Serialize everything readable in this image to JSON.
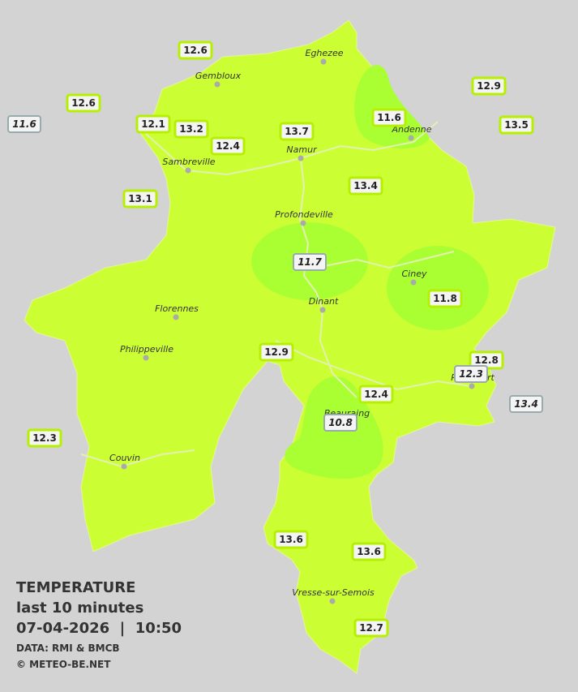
{
  "legend": {
    "title": "TEMPERATURE",
    "subtitle": "last 10 minutes",
    "timestamp": "07-04-2026  |  10:50",
    "source": "DATA: RMI & BMCB",
    "credit": "© METEO-BE.NET"
  },
  "towns": [
    "Eghezee",
    "Gembloux",
    "Andenne",
    "Namur",
    "Sambreville",
    "Profondeville",
    "Ciney",
    "Dinant",
    "Florennes",
    "Philippeville",
    "Rochefort",
    "Beauraing",
    "Couvin",
    "Vresse-sur-Semois"
  ],
  "stations": [
    12.6,
    12.6,
    11.6,
    12.1,
    13.2,
    12.4,
    13.7,
    11.6,
    12.9,
    13.5,
    13.4,
    13.1,
    11.7,
    11.8,
    12.9,
    12.8,
    12.3,
    12.4,
    13.4,
    10.8,
    12.3,
    13.6,
    13.6,
    12.7
  ]
}
